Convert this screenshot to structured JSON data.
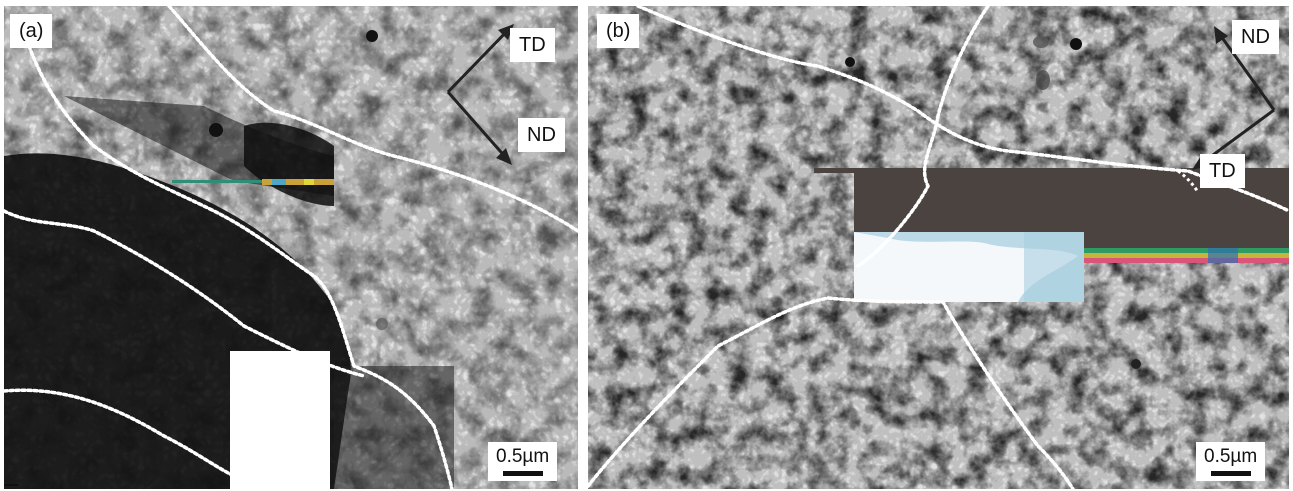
{
  "panels": [
    {
      "label": "(a)",
      "scale_bar": "0.5µm",
      "directions": {
        "first": "TD",
        "second": "ND"
      }
    },
    {
      "label": "(b)",
      "scale_bar": "0.5µm",
      "directions": {
        "first": "ND",
        "second": "TD"
      }
    }
  ],
  "colors": {
    "background": "#ffffff",
    "micrograph_light": "#e6e6e6",
    "micrograph_dark": "#1a1a1a",
    "boundary": "#ffffff",
    "artifact_bar": "#4a4340",
    "artifact_cyan": "#a9cfe0",
    "arrow": "#222222"
  },
  "icons": [
    "td-arrow-icon",
    "nd-arrow-icon"
  ]
}
